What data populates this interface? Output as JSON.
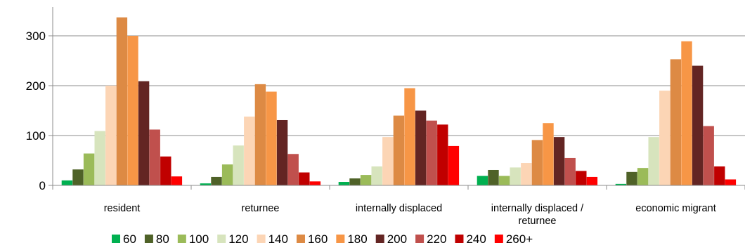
{
  "chart_data": {
    "type": "bar",
    "categories": [
      [
        "resident"
      ],
      [
        "returnee"
      ],
      [
        "internally displaced"
      ],
      [
        "internally displaced /",
        "returnee"
      ],
      [
        "economic migrant"
      ]
    ],
    "ylim": [
      0,
      350
    ],
    "yticks": [
      0,
      100,
      200,
      300
    ],
    "grid": true,
    "legend_position": "bottom",
    "series": [
      {
        "name": "60",
        "color": "#00b050",
        "values": [
          10,
          4,
          7,
          19,
          3
        ]
      },
      {
        "name": "80",
        "color": "#4f6228",
        "values": [
          32,
          17,
          14,
          31,
          27
        ]
      },
      {
        "name": "100",
        "color": "#9bbb59",
        "values": [
          64,
          42,
          21,
          19,
          35
        ]
      },
      {
        "name": "120",
        "color": "#d7e4bd",
        "values": [
          109,
          80,
          38,
          36,
          97
        ]
      },
      {
        "name": "140",
        "color": "#fcd5b5",
        "values": [
          200,
          138,
          97,
          45,
          190
        ]
      },
      {
        "name": "160",
        "color": "#dd8a44",
        "values": [
          337,
          203,
          140,
          91,
          253
        ]
      },
      {
        "name": "180",
        "color": "#f79646",
        "values": [
          300,
          188,
          195,
          125,
          289
        ]
      },
      {
        "name": "200",
        "color": "#632523",
        "values": [
          209,
          131,
          150,
          97,
          240
        ]
      },
      {
        "name": "220",
        "color": "#c0504d",
        "values": [
          112,
          63,
          130,
          55,
          119
        ]
      },
      {
        "name": "240",
        "color": "#c00000",
        "values": [
          58,
          26,
          122,
          29,
          38
        ]
      },
      {
        "name": "260+",
        "color": "#ff0000",
        "values": [
          18,
          8,
          79,
          17,
          12
        ]
      }
    ]
  }
}
